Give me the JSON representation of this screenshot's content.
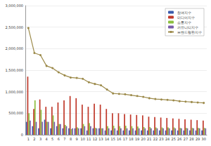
{
  "chart_data": {
    "type": "bar",
    "categories": [
      "1",
      "2",
      "3",
      "4",
      "5",
      "6",
      "7",
      "8",
      "9",
      "10",
      "11",
      "12",
      "13",
      "14",
      "15",
      "16",
      "17",
      "18",
      "19",
      "20",
      "21",
      "22",
      "23",
      "24",
      "25",
      "26",
      "27",
      "28",
      "29",
      "30"
    ],
    "series": [
      {
        "name": "참여지수",
        "type": "bar",
        "color": "#3b5bab",
        "values": [
          300000,
          200000,
          150000,
          350000,
          150000,
          200000,
          150000,
          150000,
          150000,
          150000,
          100000,
          150000,
          150000,
          100000,
          100000,
          100000,
          100000,
          100000,
          100000,
          100000,
          100000,
          100000,
          100000,
          100000,
          100000,
          100000,
          100000,
          100000,
          100000,
          100000
        ]
      },
      {
        "name": "미디어지수",
        "type": "bar",
        "color": "#c0392b",
        "values": [
          1350000,
          600000,
          820000,
          650000,
          650000,
          750000,
          800000,
          900000,
          850000,
          700000,
          650000,
          720000,
          700000,
          600000,
          500000,
          500000,
          480000,
          470000,
          460000,
          450000,
          420000,
          410000,
          400000,
          390000,
          380000,
          370000,
          360000,
          350000,
          340000,
          330000
        ]
      },
      {
        "name": "소통지수",
        "type": "bar",
        "color": "#8dbf3f",
        "values": [
          500000,
          800000,
          580000,
          300000,
          450000,
          250000,
          230000,
          130000,
          170000,
          250000,
          270000,
          160000,
          150000,
          200000,
          210000,
          200000,
          210000,
          200000,
          190000,
          180000,
          180000,
          170000,
          170000,
          170000,
          170000,
          160000,
          160000,
          160000,
          160000,
          160000
        ]
      },
      {
        "name": "커뮤니티지수",
        "type": "bar",
        "color": "#7a5ca8",
        "values": [
          330000,
          300000,
          300000,
          300000,
          300000,
          250000,
          200000,
          150000,
          150000,
          200000,
          200000,
          150000,
          150000,
          150000,
          150000,
          150000,
          150000,
          150000,
          150000,
          150000,
          150000,
          150000,
          150000,
          150000,
          150000,
          150000,
          150000,
          150000,
          150000,
          150000
        ]
      },
      {
        "name": "브랜드평판지수",
        "type": "line",
        "color": "#9c8a4a",
        "marker": "circle",
        "values": [
          2480000,
          1900000,
          1850000,
          1600000,
          1550000,
          1450000,
          1380000,
          1330000,
          1320000,
          1300000,
          1220000,
          1180000,
          1150000,
          1050000,
          960000,
          950000,
          940000,
          920000,
          900000,
          880000,
          850000,
          830000,
          820000,
          810000,
          800000,
          780000,
          770000,
          760000,
          750000,
          740000
        ]
      }
    ],
    "ylim": [
      0,
      3000000
    ],
    "yticks": [
      0,
      {
        "value": 500000,
        "label": "500,000"
      },
      {
        "value": 1000000,
        "label": "1,000,000"
      },
      {
        "value": 1500000,
        "label": "1,500,000"
      },
      {
        "value": 2000000,
        "label": "2,000,000"
      },
      {
        "value": 2500000,
        "label": "2,500,000"
      },
      {
        "value": 3000000,
        "label": "3,000,000"
      }
    ],
    "grid": true,
    "legend": "upper right"
  }
}
